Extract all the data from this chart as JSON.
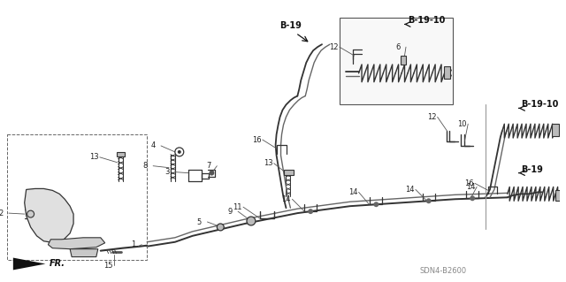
{
  "bg_color": "#ffffff",
  "line_color": "#333333",
  "diagram_code": "SDN4-B2600",
  "fr_label": "FR.",
  "figsize": [
    6.4,
    3.19
  ],
  "dpi": 100
}
